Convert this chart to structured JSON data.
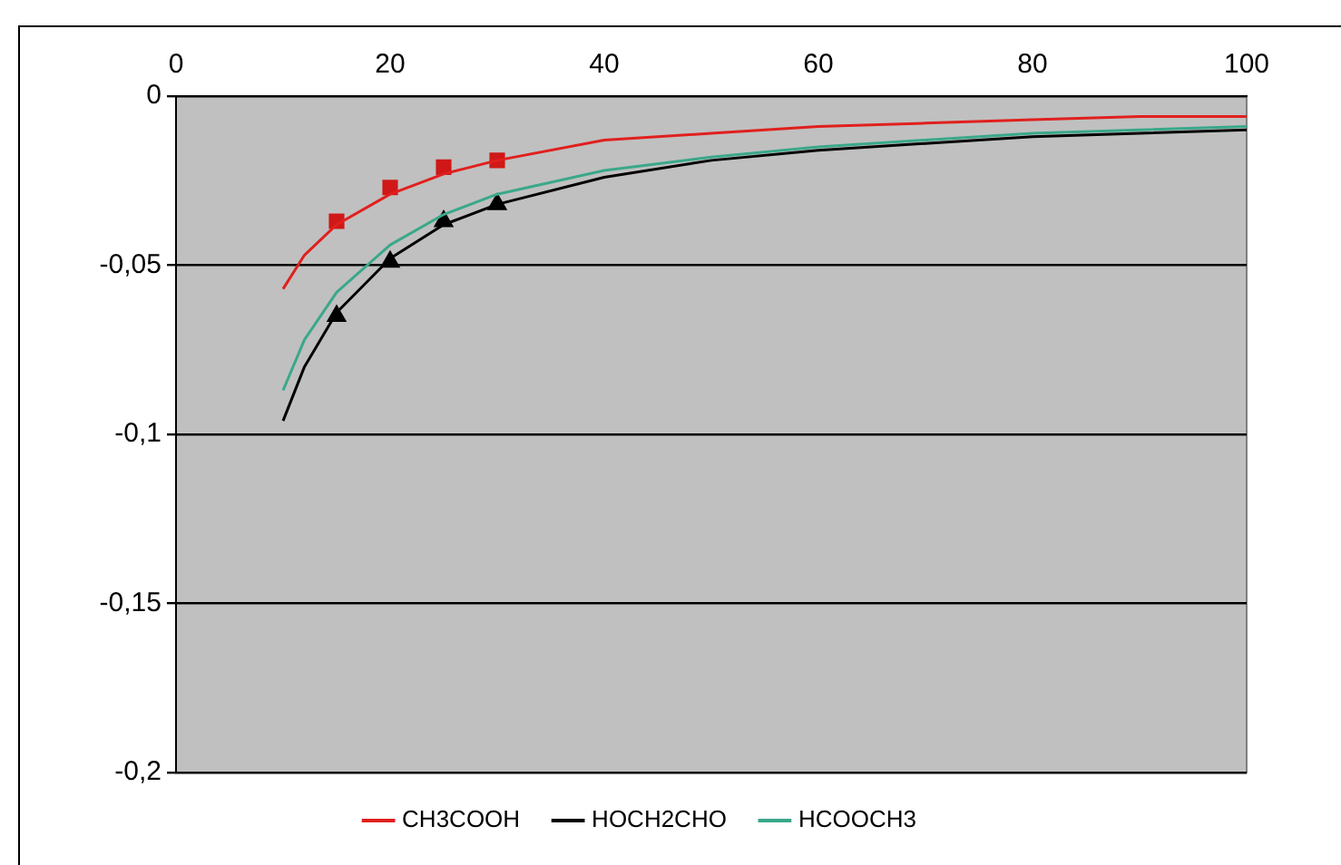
{
  "chart_data": {
    "type": "line",
    "x": [
      10,
      12,
      15,
      20,
      25,
      30,
      40,
      50,
      60,
      70,
      80,
      90,
      100
    ],
    "series": [
      {
        "name": "CH3COOH",
        "color": "#e0201e",
        "marker": "none",
        "values": [
          -0.057,
          -0.047,
          -0.038,
          -0.029,
          -0.023,
          -0.019,
          -0.013,
          -0.011,
          -0.009,
          -0.008,
          -0.007,
          -0.006,
          -0.006
        ]
      },
      {
        "name": "HOCH2CHO",
        "color": "#000000",
        "marker": "none",
        "values": [
          -0.096,
          -0.08,
          -0.064,
          -0.048,
          -0.038,
          -0.032,
          -0.024,
          -0.019,
          -0.016,
          -0.014,
          -0.012,
          -0.011,
          -0.01
        ]
      },
      {
        "name": "HCOOCH3",
        "color": "#3aa88a",
        "marker": "none",
        "values": [
          -0.087,
          -0.072,
          -0.058,
          -0.044,
          -0.035,
          -0.029,
          -0.022,
          -0.018,
          -0.015,
          -0.013,
          -0.011,
          -0.01,
          -0.009
        ]
      },
      {
        "type": "scatter",
        "color": "#d01818",
        "marker": "square",
        "x": [
          15,
          20,
          25,
          30
        ],
        "values": [
          -0.037,
          -0.027,
          -0.021,
          -0.019
        ]
      },
      {
        "type": "scatter",
        "color": "#000000",
        "marker": "triangle",
        "x": [
          15,
          20,
          25,
          30
        ],
        "values": [
          -0.065,
          -0.049,
          -0.037,
          -0.032
        ]
      }
    ],
    "xlim": [
      0,
      100
    ],
    "xticks": [
      0,
      20,
      40,
      60,
      80,
      100
    ],
    "ylim": [
      -0.2,
      0
    ],
    "yticks": [
      {
        "value": -0.2,
        "label": "-0,2"
      },
      {
        "value": -0.15,
        "label": "-0,15"
      },
      {
        "value": -0.1,
        "label": "-0,1"
      },
      {
        "value": -0.05,
        "label": "-0,05"
      },
      0
    ],
    "grid": "y",
    "legend": "bottom"
  }
}
